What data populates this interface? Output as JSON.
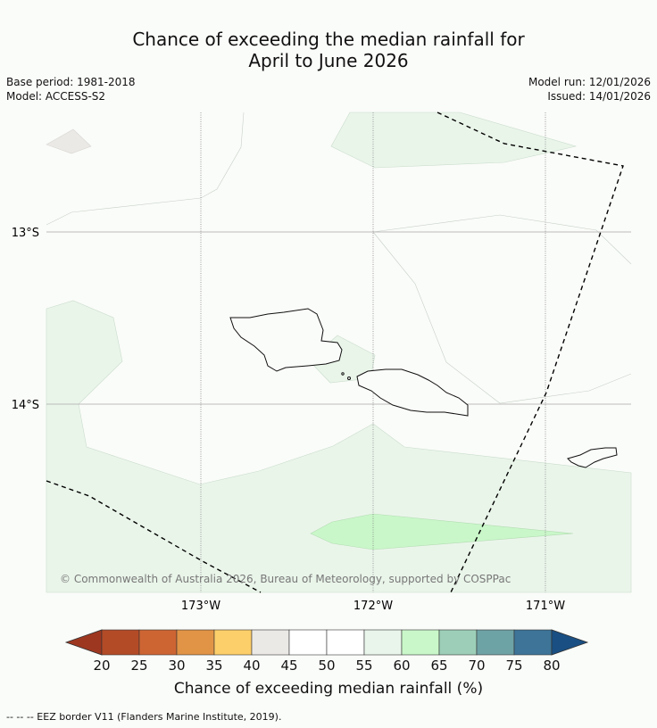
{
  "title_line1": "Chance of exceeding the median rainfall for",
  "title_line2": "April to June 2026",
  "base_period": "Base period: 1981-2018",
  "model": "Model: ACCESS-S2",
  "model_run": "Model run: 12/01/2026",
  "issued": "Issued: 14/01/2026",
  "lat_labels": [
    "13°S",
    "14°S"
  ],
  "lon_labels": [
    "173°W",
    "172°W",
    "171°W"
  ],
  "copyright": "© Commonwealth of Australia 2026, Bureau of Meteorology, supported by COSPPac",
  "colorbar": {
    "label": "Chance of exceeding median rainfall (%)",
    "ticks": [
      "20",
      "25",
      "30",
      "35",
      "40",
      "45",
      "50",
      "55",
      "60",
      "65",
      "70",
      "75",
      "80"
    ],
    "colors": [
      "#9e3720",
      "#b34b27",
      "#cd6533",
      "#e19446",
      "#fdcf6a",
      "#ebe9e6",
      "#ffffff",
      "#ffffff",
      "#e9f5ea",
      "#c9f7c9",
      "#9dcfb8",
      "#6ea3a6",
      "#3d7498",
      "#194f83"
    ]
  },
  "footer": "--  --  -- EEZ border V11 (Flanders Marine Institute, 2019)."
}
